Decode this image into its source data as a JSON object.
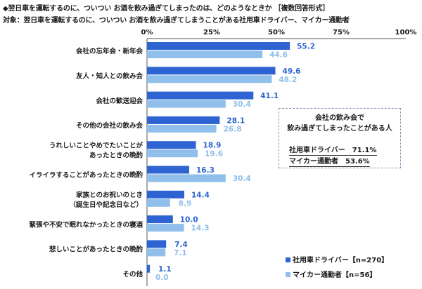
{
  "header": {
    "title_line1": "◆翌日車を運転するのに、ついつい お酒を飲み過ぎてしまったのは、どのようなときか ［複数回答形式］",
    "title_line2": "対象：翌日車を運転するのに、ついつい お酒を飲み過ぎてしまうことがある社用車ドライバー、マイカー通勤者"
  },
  "callout": {
    "heading_lines": [
      "会社の飲み会で",
      "飲み過ぎてしまったことがある人"
    ],
    "rows": [
      "社用車ドライバー　71.1%",
      "マイカー通勤者　53.6%"
    ]
  },
  "legend": [
    {
      "label": "社用車ドライバー【n=270】",
      "color": "#2d64d2"
    },
    {
      "label": "マイカー通勤者【n=56】",
      "color": "#8fbfea"
    }
  ],
  "chart_data": {
    "type": "bar",
    "orientation": "horizontal",
    "xlim": [
      0,
      100
    ],
    "ticks": [
      "0%",
      "25%",
      "50%",
      "75%",
      "100%"
    ],
    "categories": [
      [
        "会社の忘年会・新年会"
      ],
      [
        "友人・知人との飲み会"
      ],
      [
        "会社の歓送迎会"
      ],
      [
        "その他の会社の飲み会"
      ],
      [
        "うれしいことやめでたいことが",
        "あったときの晩酌"
      ],
      [
        "イライラすることがあったときの晩酌"
      ],
      [
        "家族とのお祝いのとき",
        "（誕生日や記念日など）"
      ],
      [
        "緊張や不安で眠れなかったときの寝酒"
      ],
      [
        "悲しいことがあったときの晩酌"
      ],
      [
        "その他"
      ]
    ],
    "series": [
      {
        "name": "社用車ドライバー【n=270】",
        "color": "#2d64d2",
        "values": [
          55.2,
          49.6,
          41.1,
          28.1,
          18.9,
          16.3,
          14.4,
          10.0,
          7.4,
          1.1
        ],
        "labels": [
          "55.2",
          "49.6",
          "41.1",
          "28.1",
          "18.9",
          "16.3",
          "14.4",
          "10.0",
          "7.4",
          "1.1"
        ]
      },
      {
        "name": "マイカー通勤者【n=56】",
        "color": "#8fbfea",
        "values": [
          44.6,
          48.2,
          30.4,
          26.8,
          19.6,
          30.4,
          8.9,
          14.3,
          7.1,
          0.0
        ],
        "labels": [
          "44.6",
          "48.2",
          "30.4",
          "26.8",
          "19.6",
          "30.4",
          "8.9",
          "14.3",
          "7.1",
          "0.0"
        ]
      }
    ],
    "grid": false,
    "legend_position": "bottom-right"
  }
}
